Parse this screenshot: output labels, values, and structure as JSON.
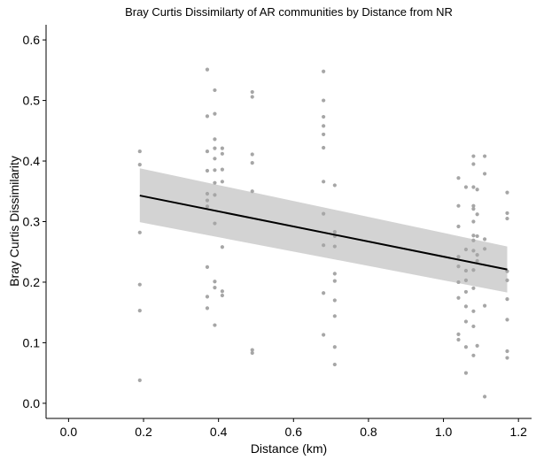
{
  "chart_data": {
    "type": "scatter",
    "title": "Bray Curtis Dissimilarty of AR communities by Distance from NR",
    "xlabel": "Distance (km)",
    "ylabel": "Bray Curtis Dissimilarity",
    "xlim": [
      -0.06,
      1.235
    ],
    "ylim": [
      -0.025,
      0.625
    ],
    "x_ticks": [
      "0.0",
      "0.2",
      "0.4",
      "0.6",
      "0.8",
      "1.0",
      "1.2"
    ],
    "y_ticks": [
      "0.0",
      "0.1",
      "0.2",
      "0.3",
      "0.4",
      "0.5",
      "0.6"
    ],
    "grid": false,
    "point_color": "#a6a6a6",
    "line_color": "#000000",
    "band_color": "#d3d3d3",
    "trend_line": {
      "x": [
        0.19,
        1.17
      ],
      "y": [
        0.343,
        0.221
      ]
    },
    "confidence_band": {
      "x": [
        0.19,
        1.17
      ],
      "upper": [
        0.388,
        0.259
      ],
      "lower": [
        0.299,
        0.183
      ]
    },
    "points": [
      {
        "x": 0.19,
        "y": 0.416
      },
      {
        "x": 0.19,
        "y": 0.394
      },
      {
        "x": 0.19,
        "y": 0.282
      },
      {
        "x": 0.19,
        "y": 0.196
      },
      {
        "x": 0.19,
        "y": 0.153
      },
      {
        "x": 0.19,
        "y": 0.038
      },
      {
        "x": 0.37,
        "y": 0.551
      },
      {
        "x": 0.37,
        "y": 0.474
      },
      {
        "x": 0.37,
        "y": 0.416
      },
      {
        "x": 0.37,
        "y": 0.384
      },
      {
        "x": 0.37,
        "y": 0.346
      },
      {
        "x": 0.37,
        "y": 0.335
      },
      {
        "x": 0.37,
        "y": 0.325
      },
      {
        "x": 0.37,
        "y": 0.225
      },
      {
        "x": 0.37,
        "y": 0.176
      },
      {
        "x": 0.37,
        "y": 0.157
      },
      {
        "x": 0.39,
        "y": 0.517
      },
      {
        "x": 0.39,
        "y": 0.478
      },
      {
        "x": 0.39,
        "y": 0.436
      },
      {
        "x": 0.39,
        "y": 0.421
      },
      {
        "x": 0.39,
        "y": 0.404
      },
      {
        "x": 0.39,
        "y": 0.385
      },
      {
        "x": 0.39,
        "y": 0.364
      },
      {
        "x": 0.39,
        "y": 0.344
      },
      {
        "x": 0.39,
        "y": 0.297
      },
      {
        "x": 0.39,
        "y": 0.201
      },
      {
        "x": 0.39,
        "y": 0.191
      },
      {
        "x": 0.39,
        "y": 0.129
      },
      {
        "x": 0.41,
        "y": 0.421
      },
      {
        "x": 0.41,
        "y": 0.412
      },
      {
        "x": 0.41,
        "y": 0.386
      },
      {
        "x": 0.41,
        "y": 0.366
      },
      {
        "x": 0.41,
        "y": 0.258
      },
      {
        "x": 0.41,
        "y": 0.185
      },
      {
        "x": 0.41,
        "y": 0.178
      },
      {
        "x": 0.49,
        "y": 0.514
      },
      {
        "x": 0.49,
        "y": 0.506
      },
      {
        "x": 0.49,
        "y": 0.411
      },
      {
        "x": 0.49,
        "y": 0.397
      },
      {
        "x": 0.49,
        "y": 0.35
      },
      {
        "x": 0.49,
        "y": 0.088
      },
      {
        "x": 0.49,
        "y": 0.083
      },
      {
        "x": 0.68,
        "y": 0.548
      },
      {
        "x": 0.68,
        "y": 0.5
      },
      {
        "x": 0.68,
        "y": 0.473
      },
      {
        "x": 0.68,
        "y": 0.458
      },
      {
        "x": 0.68,
        "y": 0.444
      },
      {
        "x": 0.68,
        "y": 0.422
      },
      {
        "x": 0.68,
        "y": 0.366
      },
      {
        "x": 0.68,
        "y": 0.313
      },
      {
        "x": 0.68,
        "y": 0.261
      },
      {
        "x": 0.68,
        "y": 0.182
      },
      {
        "x": 0.68,
        "y": 0.113
      },
      {
        "x": 0.71,
        "y": 0.36
      },
      {
        "x": 0.71,
        "y": 0.283
      },
      {
        "x": 0.71,
        "y": 0.276
      },
      {
        "x": 0.71,
        "y": 0.259
      },
      {
        "x": 0.71,
        "y": 0.214
      },
      {
        "x": 0.71,
        "y": 0.202
      },
      {
        "x": 0.71,
        "y": 0.17
      },
      {
        "x": 0.71,
        "y": 0.144
      },
      {
        "x": 0.71,
        "y": 0.093
      },
      {
        "x": 0.71,
        "y": 0.064
      },
      {
        "x": 1.04,
        "y": 0.372
      },
      {
        "x": 1.04,
        "y": 0.326
      },
      {
        "x": 1.04,
        "y": 0.292
      },
      {
        "x": 1.04,
        "y": 0.242
      },
      {
        "x": 1.04,
        "y": 0.226
      },
      {
        "x": 1.04,
        "y": 0.2
      },
      {
        "x": 1.04,
        "y": 0.174
      },
      {
        "x": 1.04,
        "y": 0.114
      },
      {
        "x": 1.04,
        "y": 0.105
      },
      {
        "x": 1.06,
        "y": 0.357
      },
      {
        "x": 1.06,
        "y": 0.254
      },
      {
        "x": 1.06,
        "y": 0.219
      },
      {
        "x": 1.06,
        "y": 0.203
      },
      {
        "x": 1.06,
        "y": 0.184
      },
      {
        "x": 1.06,
        "y": 0.16
      },
      {
        "x": 1.06,
        "y": 0.135
      },
      {
        "x": 1.06,
        "y": 0.093
      },
      {
        "x": 1.06,
        "y": 0.05
      },
      {
        "x": 1.08,
        "y": 0.408
      },
      {
        "x": 1.08,
        "y": 0.395
      },
      {
        "x": 1.08,
        "y": 0.357
      },
      {
        "x": 1.08,
        "y": 0.326
      },
      {
        "x": 1.08,
        "y": 0.321
      },
      {
        "x": 1.08,
        "y": 0.3
      },
      {
        "x": 1.08,
        "y": 0.277
      },
      {
        "x": 1.08,
        "y": 0.269
      },
      {
        "x": 1.08,
        "y": 0.252
      },
      {
        "x": 1.08,
        "y": 0.22
      },
      {
        "x": 1.08,
        "y": 0.19
      },
      {
        "x": 1.08,
        "y": 0.152
      },
      {
        "x": 1.08,
        "y": 0.127
      },
      {
        "x": 1.08,
        "y": 0.079
      },
      {
        "x": 1.09,
        "y": 0.353
      },
      {
        "x": 1.09,
        "y": 0.312
      },
      {
        "x": 1.09,
        "y": 0.276
      },
      {
        "x": 1.09,
        "y": 0.245
      },
      {
        "x": 1.09,
        "y": 0.235
      },
      {
        "x": 1.09,
        "y": 0.095
      },
      {
        "x": 1.11,
        "y": 0.408
      },
      {
        "x": 1.11,
        "y": 0.379
      },
      {
        "x": 1.11,
        "y": 0.271
      },
      {
        "x": 1.11,
        "y": 0.255
      },
      {
        "x": 1.11,
        "y": 0.161
      },
      {
        "x": 1.11,
        "y": 0.011
      },
      {
        "x": 1.17,
        "y": 0.348
      },
      {
        "x": 1.17,
        "y": 0.314
      },
      {
        "x": 1.17,
        "y": 0.305
      },
      {
        "x": 1.17,
        "y": 0.218
      },
      {
        "x": 1.17,
        "y": 0.203
      },
      {
        "x": 1.17,
        "y": 0.172
      },
      {
        "x": 1.17,
        "y": 0.138
      },
      {
        "x": 1.17,
        "y": 0.086
      },
      {
        "x": 1.17,
        "y": 0.075
      }
    ]
  }
}
